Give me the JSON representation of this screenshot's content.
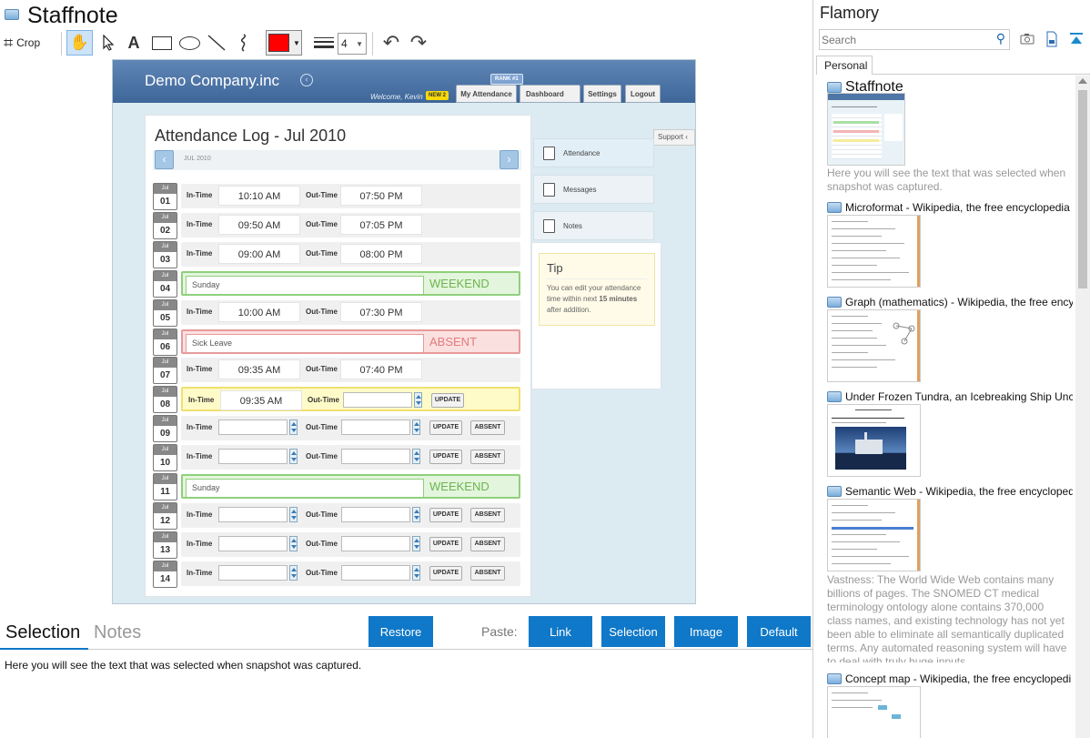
{
  "app": {
    "title": "Staffnote"
  },
  "toolbar": {
    "crop_label": "Crop",
    "line_width_value": "4",
    "color_swatch": "#ff0000"
  },
  "demo": {
    "brand": "Demo Company.inc",
    "welcome": "Welcome, Kevin",
    "new_badge": "NEW 2",
    "rank_badge": "RANK #1",
    "nav": [
      "My Attendance",
      "Dashboard",
      "Settings",
      "Logout"
    ],
    "support_tab": "Support",
    "log_title": "Attendance Log - Jul 2010",
    "month_label": "JUL 2010",
    "side_tabs": [
      "Attendance",
      "Messages",
      "Notes"
    ],
    "tip_title": "Tip",
    "tip_text_1": "You can edit your attendance time within next",
    "tip_text_bold": "15 minutes",
    "tip_text_2": "after addition.",
    "labels": {
      "in": "In-Time",
      "out": "Out-Time",
      "update": "UPDATE",
      "absent": "ABSENT",
      "cal_month": "Jul"
    },
    "rows": [
      {
        "day": "01",
        "type": "time",
        "in": "10:10 AM",
        "out": "07:50 PM"
      },
      {
        "day": "02",
        "type": "time",
        "in": "09:50 AM",
        "out": "07:05 PM"
      },
      {
        "day": "03",
        "type": "time",
        "in": "09:00 AM",
        "out": "08:00 PM"
      },
      {
        "day": "04",
        "type": "weekend",
        "note": "Sunday",
        "tag": "WEEKEND"
      },
      {
        "day": "05",
        "type": "time",
        "in": "10:00 AM",
        "out": "07:30 PM"
      },
      {
        "day": "06",
        "type": "absent",
        "note": "Sick Leave",
        "tag": "ABSENT"
      },
      {
        "day": "07",
        "type": "time",
        "in": "09:35 AM",
        "out": "07:40 PM"
      },
      {
        "day": "08",
        "type": "current",
        "in": "09:35 AM"
      },
      {
        "day": "09",
        "type": "empty"
      },
      {
        "day": "10",
        "type": "empty"
      },
      {
        "day": "11",
        "type": "weekend",
        "note": "Sunday",
        "tag": "WEEKEND"
      },
      {
        "day": "12",
        "type": "empty"
      },
      {
        "day": "13",
        "type": "empty"
      },
      {
        "day": "14",
        "type": "empty"
      }
    ]
  },
  "bottom": {
    "tabs": [
      "Selection",
      "Notes"
    ],
    "restore_label": "Restore",
    "paste_label": "Paste:",
    "paste_buttons": [
      "Link",
      "Selection",
      "Image",
      "Default"
    ],
    "selection_text": "Here you will see the text that was selected when snapshot was captured."
  },
  "flamory": {
    "title": "Flamory",
    "search_placeholder": "Search",
    "tab": "Personal",
    "items": [
      {
        "title": "Staffnote",
        "desc": "Here you will see the text that was selected when snapshot was captured."
      },
      {
        "title": "Microformat - Wikipedia, the free encyclopedia"
      },
      {
        "title": "Graph (mathematics) - Wikipedia, the free encyc"
      },
      {
        "title": "Under Frozen Tundra, an Icebreaking Ship Unco"
      },
      {
        "title": "Semantic Web - Wikipedia, the free encycloped",
        "desc": "Vastness: The World Wide Web contains many billions of pages. The SNOMED CT medical terminology ontology alone contains 370,000 class names, and existing technology has not yet been able to eliminate all semantically duplicated terms. Any automated reasoning system will have to deal with truly huge inputs."
      },
      {
        "title": "Concept map - Wikipedia, the free encyclopedi"
      }
    ]
  }
}
